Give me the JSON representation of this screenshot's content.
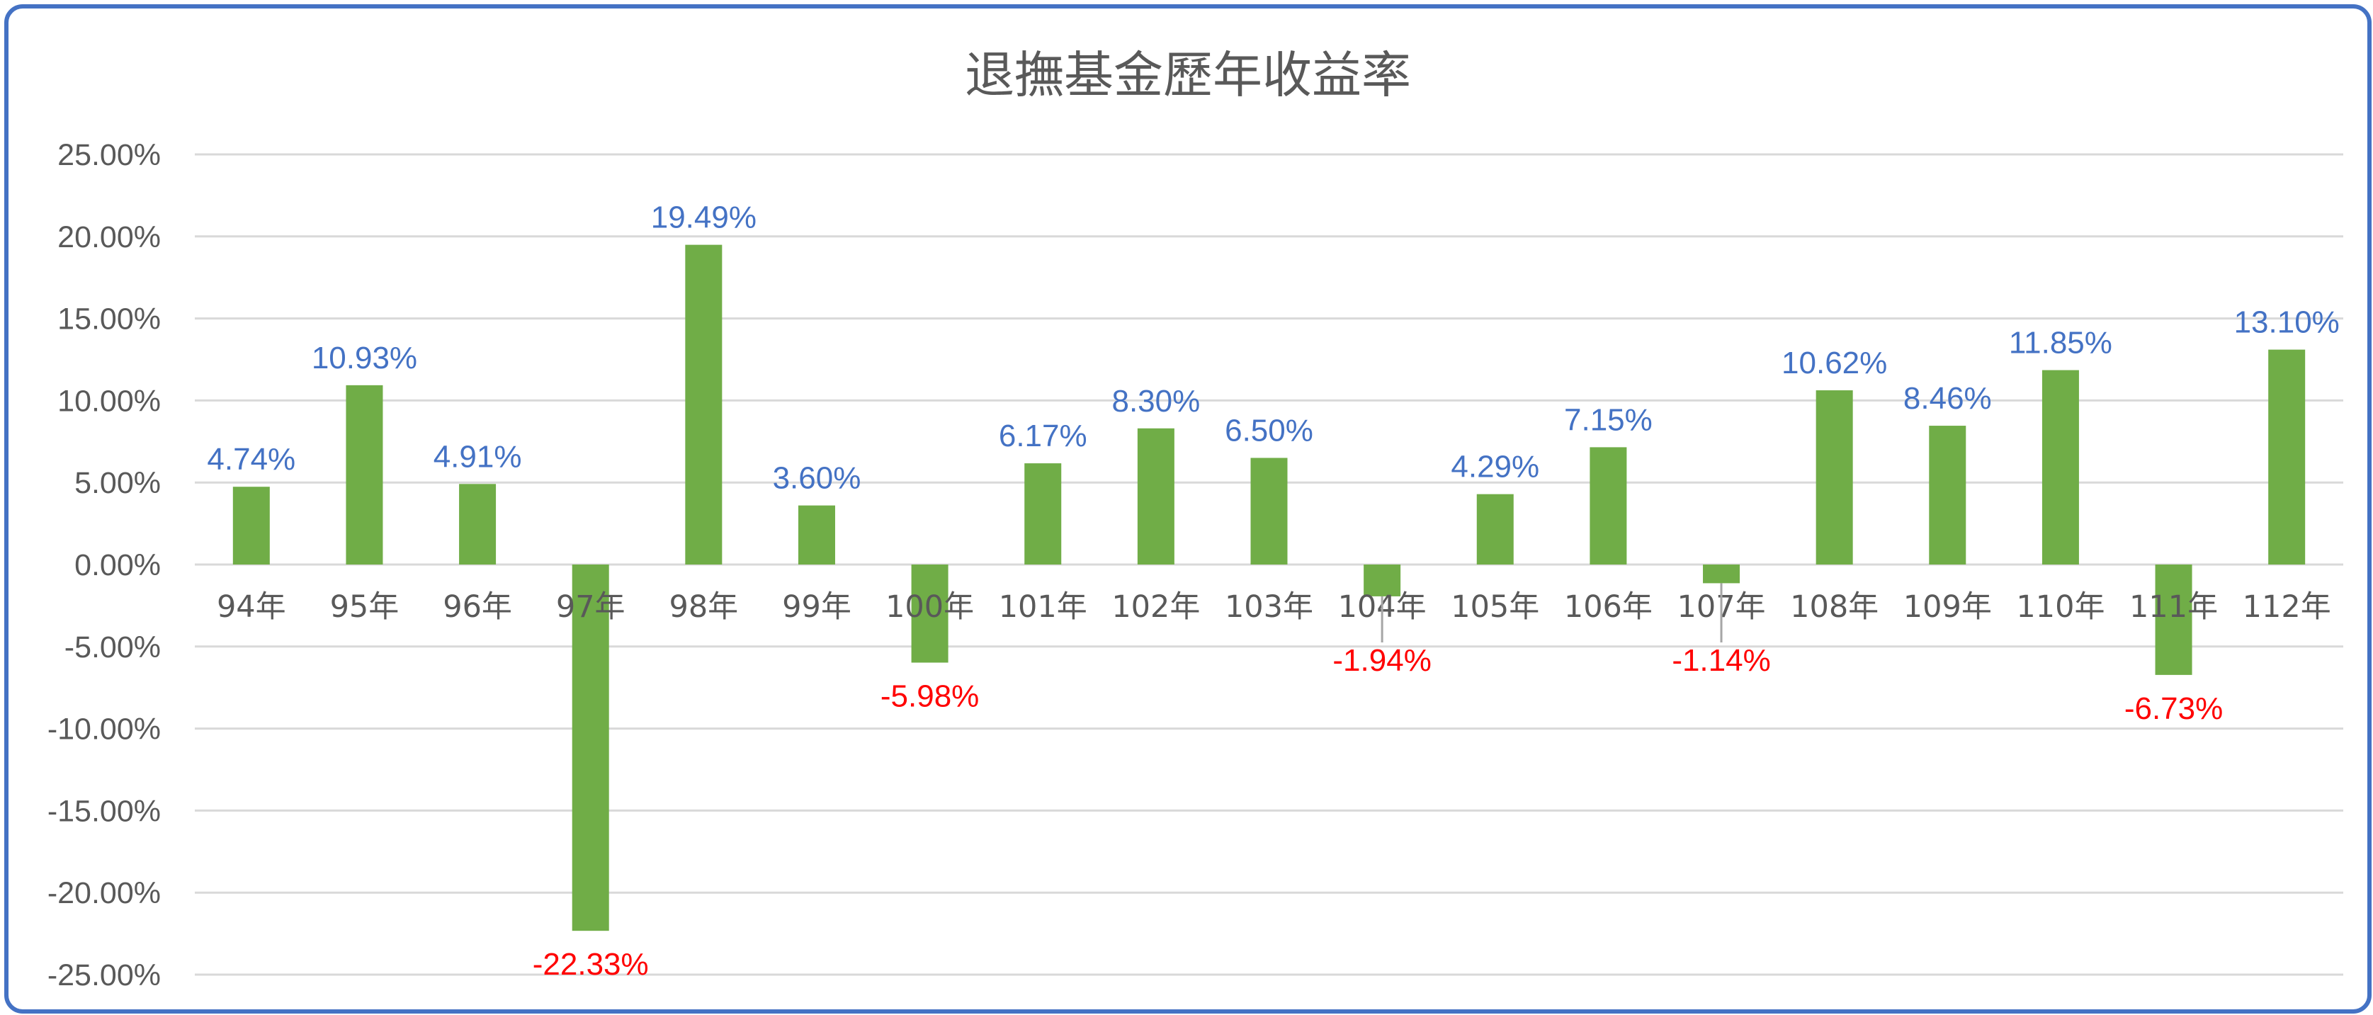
{
  "chart_data": {
    "type": "bar",
    "title": "退撫基金歷年收益率",
    "xlabel": "",
    "ylabel": "",
    "ylim": [
      -25,
      25
    ],
    "y_ticks": [
      "25.00%",
      "20.00%",
      "15.00%",
      "10.00%",
      "5.00%",
      "0.00%",
      "-5.00%",
      "-10.00%",
      "-15.00%",
      "-20.00%",
      "-25.00%"
    ],
    "grid": true,
    "legend": "none",
    "categories": [
      "94年",
      "95年",
      "96年",
      "97年",
      "98年",
      "99年",
      "100年",
      "101年",
      "102年",
      "103年",
      "104年",
      "105年",
      "106年",
      "107年",
      "108年",
      "109年",
      "110年",
      "111年",
      "112年"
    ],
    "series": [
      {
        "values": [
          4.74,
          10.93,
          4.91,
          -22.33,
          19.49,
          3.6,
          -5.98,
          6.17,
          8.3,
          6.5,
          -1.94,
          4.29,
          7.15,
          -1.14,
          10.62,
          8.46,
          11.85,
          -6.73,
          13.1
        ],
        "labels": [
          "4.74%",
          "10.93%",
          "4.91%",
          "-22.33%",
          "19.49%",
          "3.60%",
          "-5.98%",
          "6.17%",
          "8.30%",
          "6.50%",
          "-1.94%",
          "4.29%",
          "7.15%",
          "-1.14%",
          "10.62%",
          "8.46%",
          "11.85%",
          "-6.73%",
          "13.10%"
        ]
      }
    ],
    "colors": {
      "bar": "#70AD47",
      "positive_label": "#4472C4",
      "negative_label": "#FF0000",
      "gridline": "#D9D9D9",
      "frame": "#4472C4",
      "text": "#595959"
    }
  }
}
